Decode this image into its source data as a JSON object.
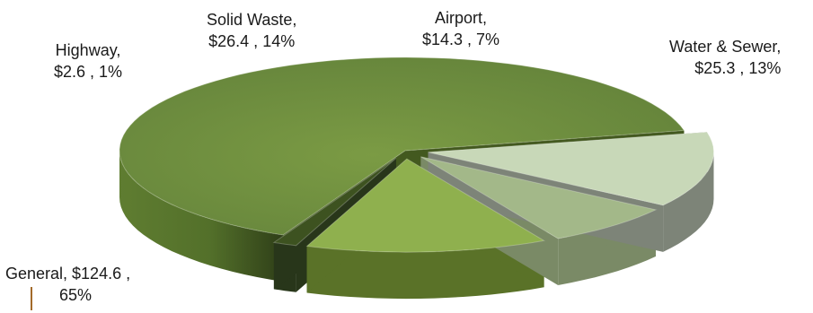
{
  "chart_data": {
    "type": "pie",
    "style": "3d-exploded",
    "categories": [
      "General",
      "Highway",
      "Solid Waste",
      "Airport",
      "Water & Sewer"
    ],
    "values": [
      124.6,
      2.6,
      26.4,
      14.3,
      25.3
    ],
    "percents": [
      65,
      1,
      14,
      7,
      13
    ],
    "colors": [
      "#6b8a3a",
      "#3d5220",
      "#8fb04e",
      "#a3b889",
      "#c8d8b8"
    ],
    "side_colors": [
      "#43591f",
      "#28361a",
      "#5a7228",
      "#7a8a66",
      "#7d8478"
    ],
    "labels": [
      {
        "line1": "General,  $124.6 ,",
        "line2": "65%"
      },
      {
        "line1": "Highway,",
        "line2": "$2.6 , 1%"
      },
      {
        "line1": "Solid Waste,",
        "line2": "$26.4 , 14%"
      },
      {
        "line1": "Airport,",
        "line2": "$14.3 , 7%"
      },
      {
        "line1": "Water & Sewer,",
        "line2": "$25.3 , 13%"
      }
    ],
    "legend": "none",
    "grid": false
  }
}
